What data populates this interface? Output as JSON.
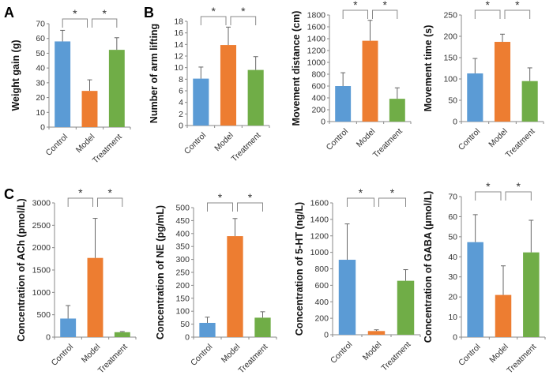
{
  "panel_labels": [
    "A",
    "B",
    "C"
  ],
  "colors": {
    "Control": "#5b9bd5",
    "Model": "#ed7d31",
    "Treatment": "#70ad47",
    "axis": "#888888",
    "error": "#666666"
  },
  "significance_marker": "*",
  "chart_data": [
    {
      "type": "bar",
      "panel": "A",
      "ylabel": "Weight gain (g)",
      "categories": [
        "Control",
        "Model",
        "Treatment"
      ],
      "values": [
        58,
        24.5,
        52.3
      ],
      "errors": [
        7.5,
        7.5,
        8.2
      ],
      "ylim": [
        0,
        70
      ],
      "ytick_step": 10,
      "significance": [
        [
          "Control",
          "Model"
        ],
        [
          "Model",
          "Treatment"
        ]
      ]
    },
    {
      "type": "bar",
      "panel": "B",
      "ylabel": "Number of arm lifting",
      "categories": [
        "Control",
        "Model",
        "Treatment"
      ],
      "values": [
        8.1,
        13.9,
        9.6
      ],
      "errors": [
        2,
        3.1,
        2.3
      ],
      "ylim": [
        0,
        18
      ],
      "ytick_step": 2,
      "significance": [
        [
          "Control",
          "Model"
        ],
        [
          "Model",
          "Treatment"
        ]
      ]
    },
    {
      "type": "bar",
      "panel": "B",
      "ylabel": "Movement distance (cm)",
      "categories": [
        "Control",
        "Model",
        "Treatment"
      ],
      "values": [
        600,
        1365,
        385
      ],
      "errors": [
        225,
        345,
        185
      ],
      "ylim": [
        0,
        1800
      ],
      "ytick_step": 200,
      "significance": [
        [
          "Control",
          "Model"
        ],
        [
          "Model",
          "Treatment"
        ]
      ]
    },
    {
      "type": "bar",
      "panel": "B",
      "ylabel": "Movement time (s)",
      "categories": [
        "Control",
        "Model",
        "Treatment"
      ],
      "values": [
        113,
        187,
        95
      ],
      "errors": [
        35,
        18,
        31
      ],
      "ylim": [
        0,
        250
      ],
      "ytick_step": 50,
      "significance": [
        [
          "Control",
          "Model"
        ],
        [
          "Model",
          "Treatment"
        ]
      ]
    },
    {
      "type": "bar",
      "panel": "C",
      "ylabel": "Concentration of ACh (pmol/L)",
      "categories": [
        "Control",
        "Model",
        "Treatment"
      ],
      "values": [
        415,
        1770,
        110
      ],
      "errors": [
        290,
        885,
        15
      ],
      "ylim": [
        0,
        3000
      ],
      "ytick_step": 500,
      "significance": [
        [
          "Control",
          "Model"
        ],
        [
          "Model",
          "Treatment"
        ]
      ]
    },
    {
      "type": "bar",
      "panel": "C",
      "ylabel": "Concentration of NE (pg/mL)",
      "categories": [
        "Control",
        "Model",
        "Treatment"
      ],
      "values": [
        55,
        390,
        75
      ],
      "errors": [
        22,
        68,
        23
      ],
      "ylim": [
        0,
        500
      ],
      "ytick_step": 50,
      "significance": [
        [
          "Control",
          "Model"
        ],
        [
          "Model",
          "Treatment"
        ]
      ]
    },
    {
      "type": "bar",
      "panel": "C",
      "ylabel": "Concentration of 5-HT (ng/L)",
      "categories": [
        "Control",
        "Model",
        "Treatment"
      ],
      "values": [
        910,
        45,
        655
      ],
      "errors": [
        435,
        15,
        135
      ],
      "ylim": [
        0,
        1600
      ],
      "ytick_step": 200,
      "significance": [
        [
          "Control",
          "Model"
        ],
        [
          "Model",
          "Treatment"
        ]
      ]
    },
    {
      "type": "bar",
      "panel": "C",
      "ylabel": "Concentration of GABA (μmol/L)",
      "categories": [
        "Control",
        "Model",
        "Treatment"
      ],
      "values": [
        47.3,
        21,
        42.2
      ],
      "errors": [
        13.7,
        14.5,
        16
      ],
      "ylim": [
        0,
        70
      ],
      "ytick_step": 10,
      "significance": [
        [
          "Control",
          "Model"
        ],
        [
          "Model",
          "Treatment"
        ]
      ]
    }
  ]
}
